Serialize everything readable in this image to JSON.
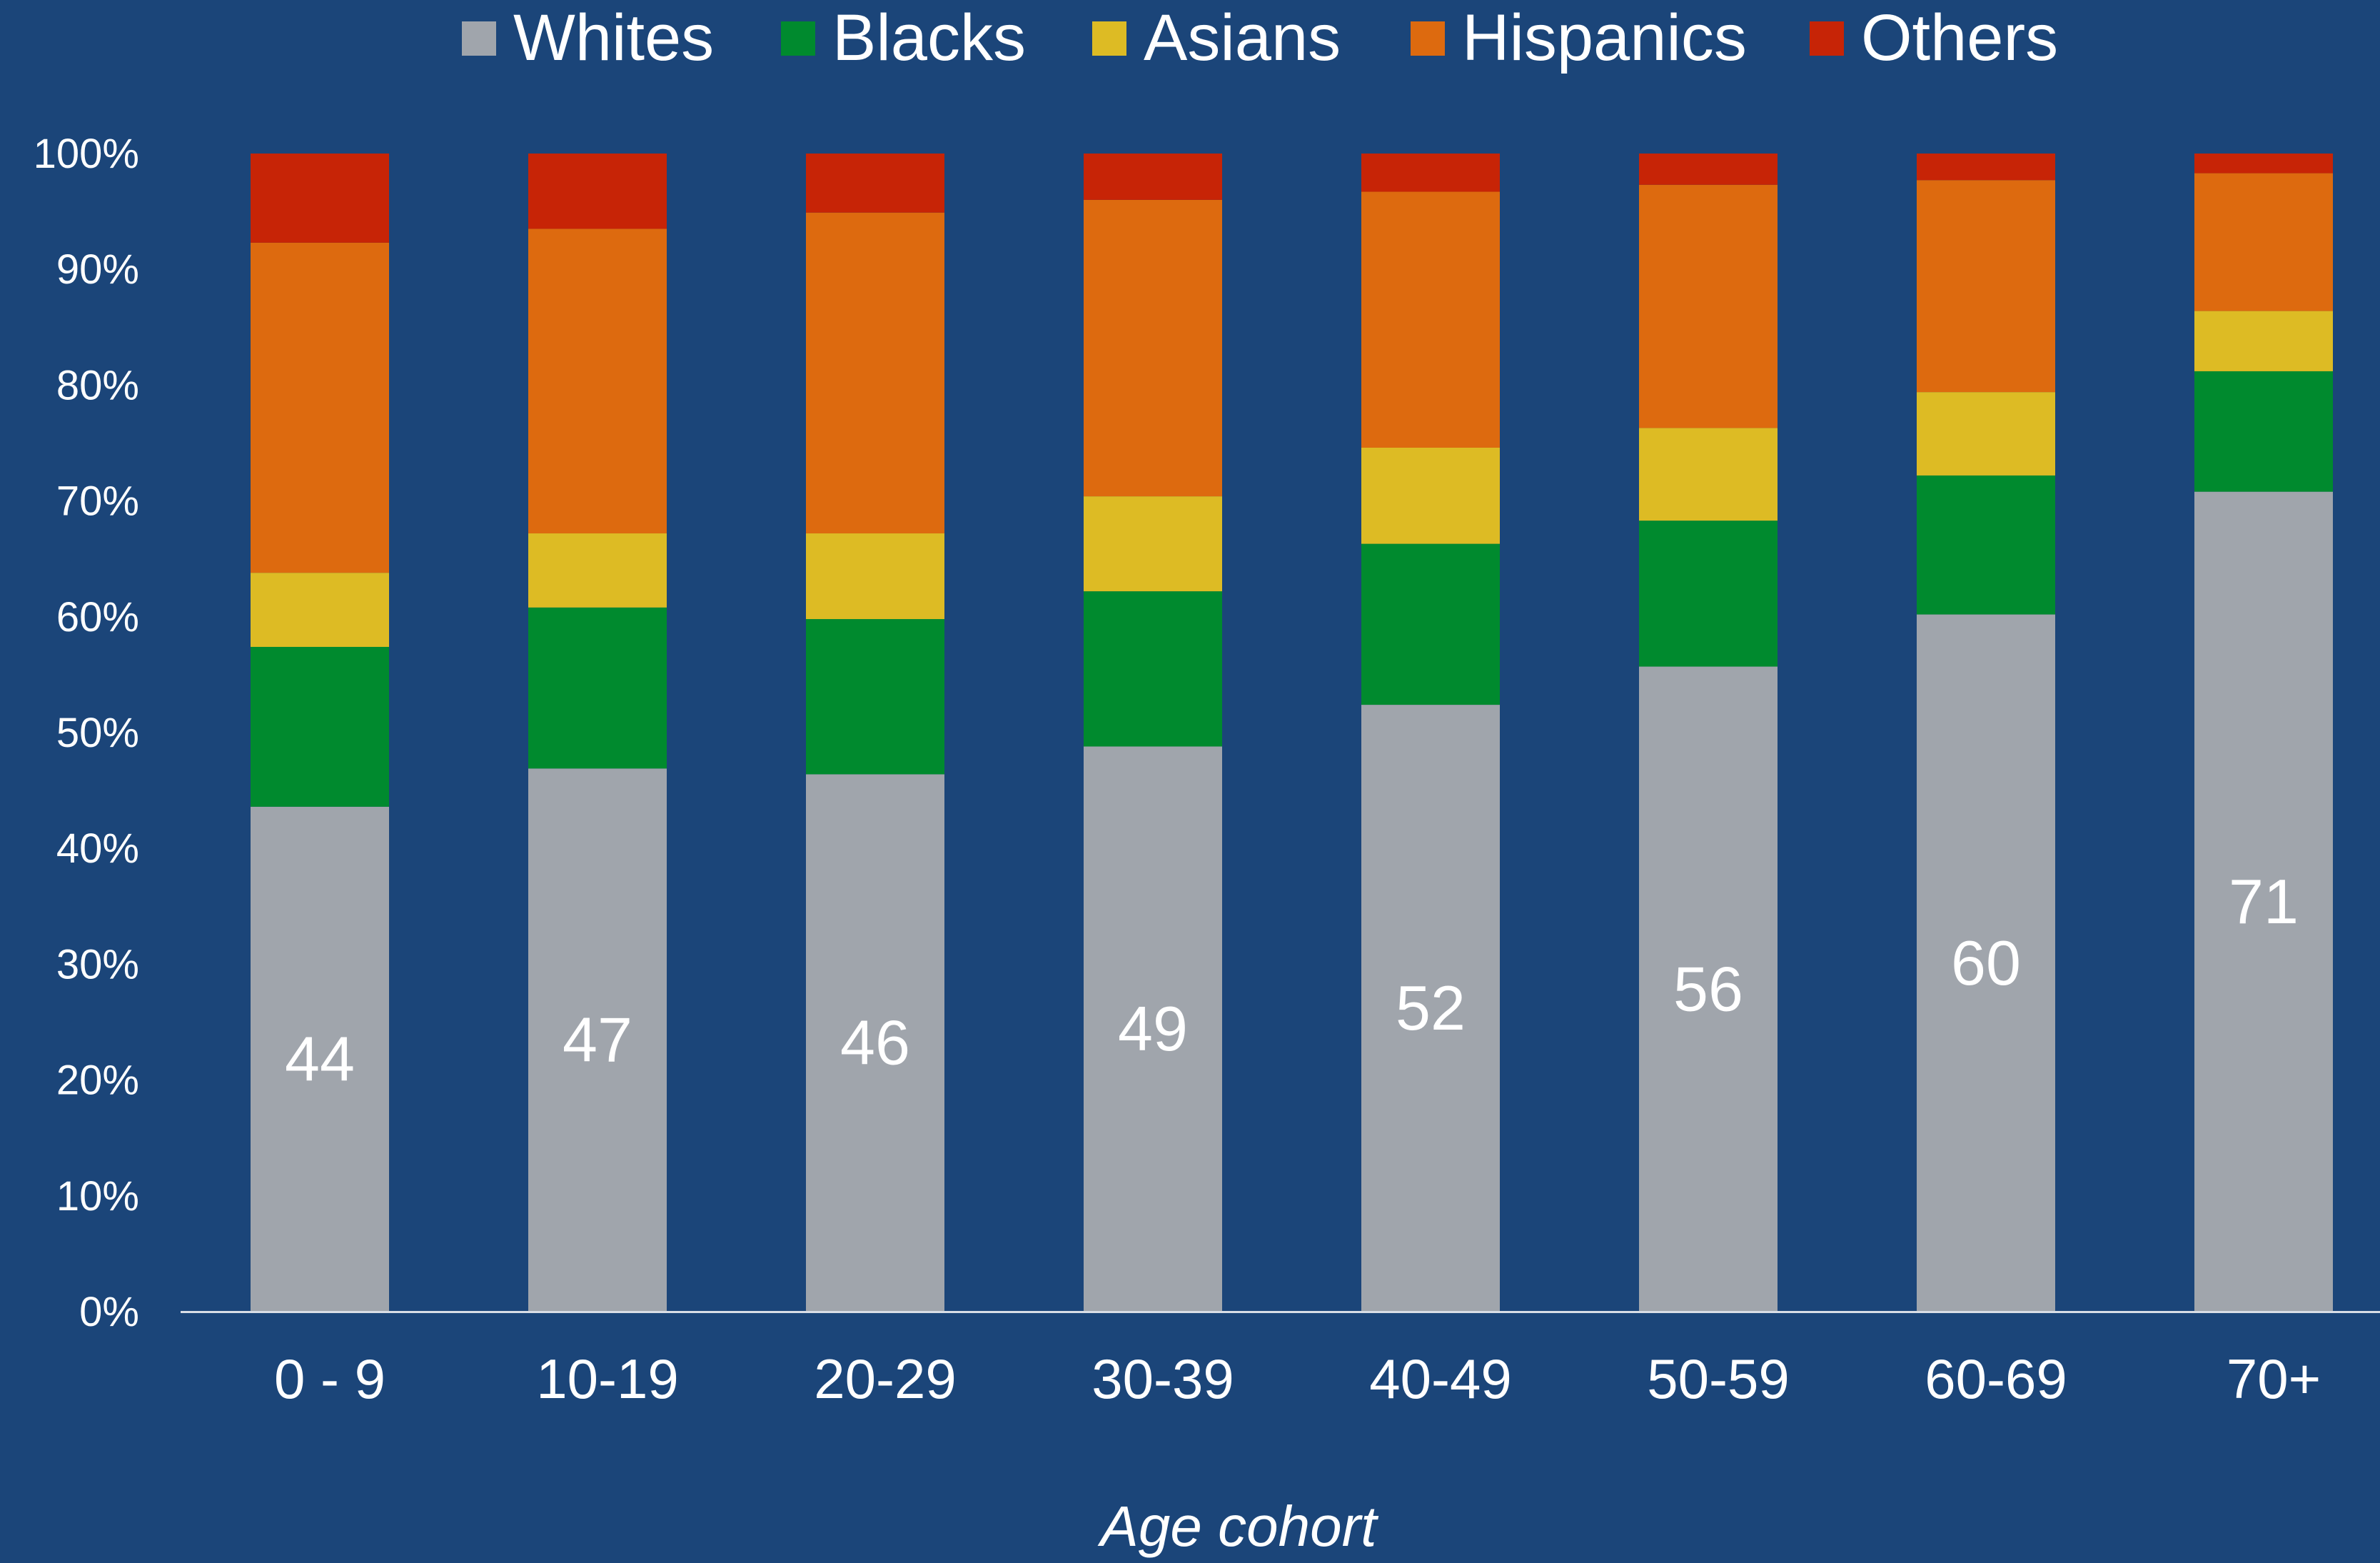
{
  "chart_data": {
    "type": "bar",
    "stacked": true,
    "percent_stacked": true,
    "title": "",
    "xlabel": "Age cohort",
    "ylabel": "",
    "ylim": [
      0,
      100
    ],
    "y_ticks": [
      "0%",
      "10%",
      "20%",
      "30%",
      "40%",
      "50%",
      "60%",
      "70%",
      "80%",
      "90%",
      "100%"
    ],
    "categories": [
      "0 - 9",
      "10-19",
      "20-29",
      "30-39",
      "40-49",
      "50-59",
      "60-69",
      "70+"
    ],
    "legend_position": "top",
    "grid": false,
    "background_color": "#1b4579",
    "series": [
      {
        "name": "Whites",
        "color": "#a0a5ac",
        "values": [
          43.6,
          46.9,
          46.4,
          48.8,
          52.4,
          55.7,
          60.2,
          70.8
        ],
        "labels": [
          "44",
          "47",
          "46",
          "49",
          "52",
          "56",
          "60",
          "71"
        ]
      },
      {
        "name": "Blacks",
        "color": "#008a2e",
        "values": [
          13.8,
          13.9,
          13.4,
          13.4,
          13.9,
          12.6,
          12.0,
          10.4
        ]
      },
      {
        "name": "Asians",
        "color": "#ddbb24",
        "values": [
          6.4,
          6.4,
          7.4,
          8.2,
          8.3,
          8.0,
          7.2,
          5.2
        ]
      },
      {
        "name": "Hispanics",
        "color": "#dd6a0f",
        "values": [
          28.5,
          26.3,
          27.7,
          25.6,
          22.1,
          21.0,
          18.3,
          11.9
        ]
      },
      {
        "name": "Others",
        "color": "#c72406",
        "values": [
          7.7,
          6.5,
          5.1,
          4.0,
          3.3,
          2.7,
          2.3,
          1.7
        ]
      }
    ]
  }
}
